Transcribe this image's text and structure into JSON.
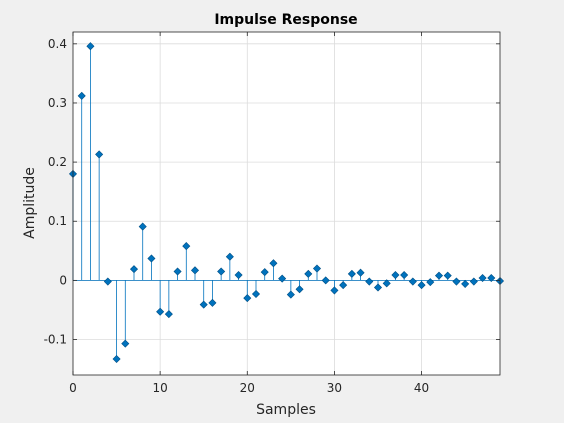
{
  "chart_data": {
    "type": "stem",
    "title": "Impulse Response",
    "xlabel": "Samples",
    "ylabel": "Amplitude",
    "xlim": [
      0,
      49
    ],
    "ylim": [
      -0.16,
      0.42
    ],
    "xticks": [
      0,
      10,
      20,
      30,
      40
    ],
    "xtick_labels": [
      "0",
      "10",
      "20",
      "30",
      "40"
    ],
    "yticks": [
      -0.1,
      0,
      0.1,
      0.2,
      0.3,
      0.4
    ],
    "ytick_labels": [
      "-0.1",
      "0",
      "0.1",
      "0.2",
      "0.3",
      "0.4"
    ],
    "grid": true,
    "colors": {
      "stem": "#0072bd",
      "marker": "#0072bd",
      "marker_edge": "#004f85",
      "axes_bg": "#ffffff",
      "figure_bg": "#f0f0f0",
      "grid": "#dcdcdc",
      "axis": "#262626"
    },
    "x": [
      0,
      1,
      2,
      3,
      4,
      5,
      6,
      7,
      8,
      9,
      10,
      11,
      12,
      13,
      14,
      15,
      16,
      17,
      18,
      19,
      20,
      21,
      22,
      23,
      24,
      25,
      26,
      27,
      28,
      29,
      30,
      31,
      32,
      33,
      34,
      35,
      36,
      37,
      38,
      39,
      40,
      41,
      42,
      43,
      44,
      45,
      46,
      47,
      48,
      49
    ],
    "y": [
      0.18,
      0.312,
      0.396,
      0.213,
      -0.002,
      -0.133,
      -0.107,
      0.019,
      0.091,
      0.037,
      -0.053,
      -0.057,
      0.015,
      0.058,
      0.017,
      -0.041,
      -0.038,
      0.015,
      0.04,
      0.009,
      -0.03,
      -0.023,
      0.014,
      0.029,
      0.003,
      -0.024,
      -0.015,
      0.011,
      0.02,
      0.0,
      -0.017,
      -0.008,
      0.011,
      0.013,
      -0.002,
      -0.012,
      -0.005,
      0.009,
      0.009,
      -0.002,
      -0.008,
      -0.003,
      0.008,
      0.008,
      -0.002,
      -0.006,
      -0.002,
      0.004,
      0.004,
      -0.001
    ]
  }
}
